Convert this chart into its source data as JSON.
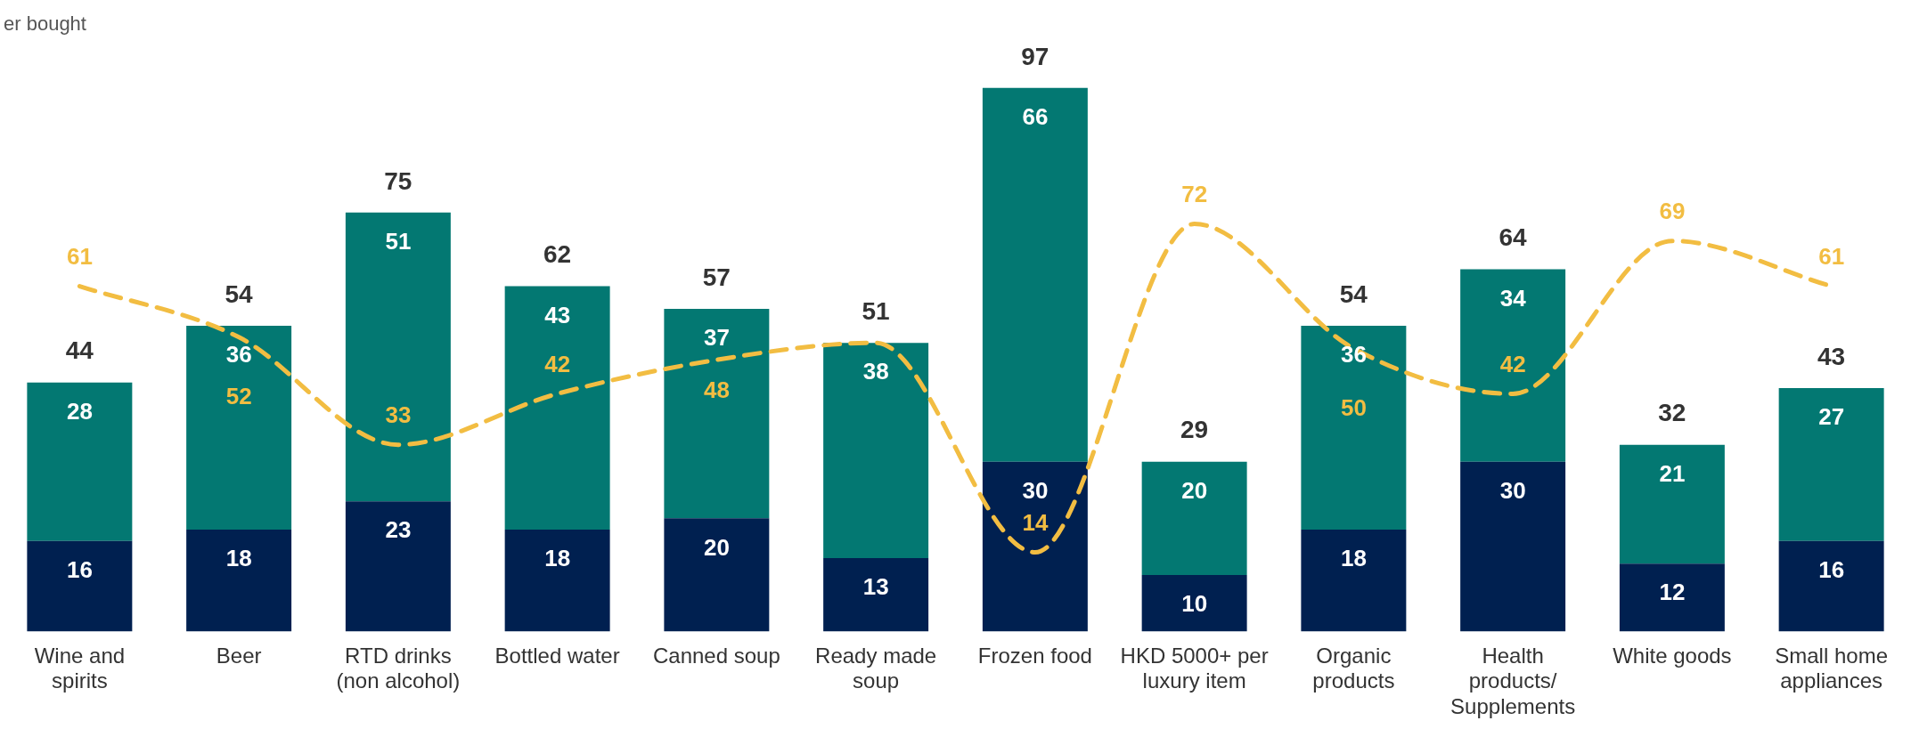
{
  "chart_data": {
    "type": "bar",
    "stacked": true,
    "data_labels": true,
    "grid": false,
    "legend": false,
    "annotations": [
      "er bought"
    ],
    "categories": [
      "Wine and spirits",
      "Beer",
      "RTD drinks (non alcohol)",
      "Bottled water",
      "Canned soup",
      "Ready made soup",
      "Frozen food",
      "HKD 5000+ per luxury item",
      "Organic products",
      "Health products/ Supplements",
      "White goods",
      "Small home appliances"
    ],
    "series": [
      {
        "color": "#002050",
        "values": [
          16,
          18,
          23,
          18,
          20,
          13,
          30,
          10,
          18,
          30,
          12,
          16
        ]
      },
      {
        "color": "#037872",
        "values": [
          28,
          36,
          51,
          43,
          37,
          38,
          66,
          20,
          36,
          34,
          21,
          27
        ]
      },
      {
        "type": "line",
        "color": "#f2bd42",
        "line_style": "dashed",
        "marker": "none",
        "values": [
          61,
          52,
          33,
          42,
          48,
          51,
          14,
          72,
          50,
          42,
          69,
          61
        ],
        "value_labels": [
          "61",
          "52",
          "33",
          "42",
          "48",
          null,
          "14",
          "72",
          "50",
          "42",
          "69",
          "61"
        ]
      }
    ],
    "totals": [
      "44",
      "54",
      "75",
      "62",
      "57",
      "51",
      "97",
      "29",
      "54",
      "64",
      "32",
      "43"
    ]
  }
}
